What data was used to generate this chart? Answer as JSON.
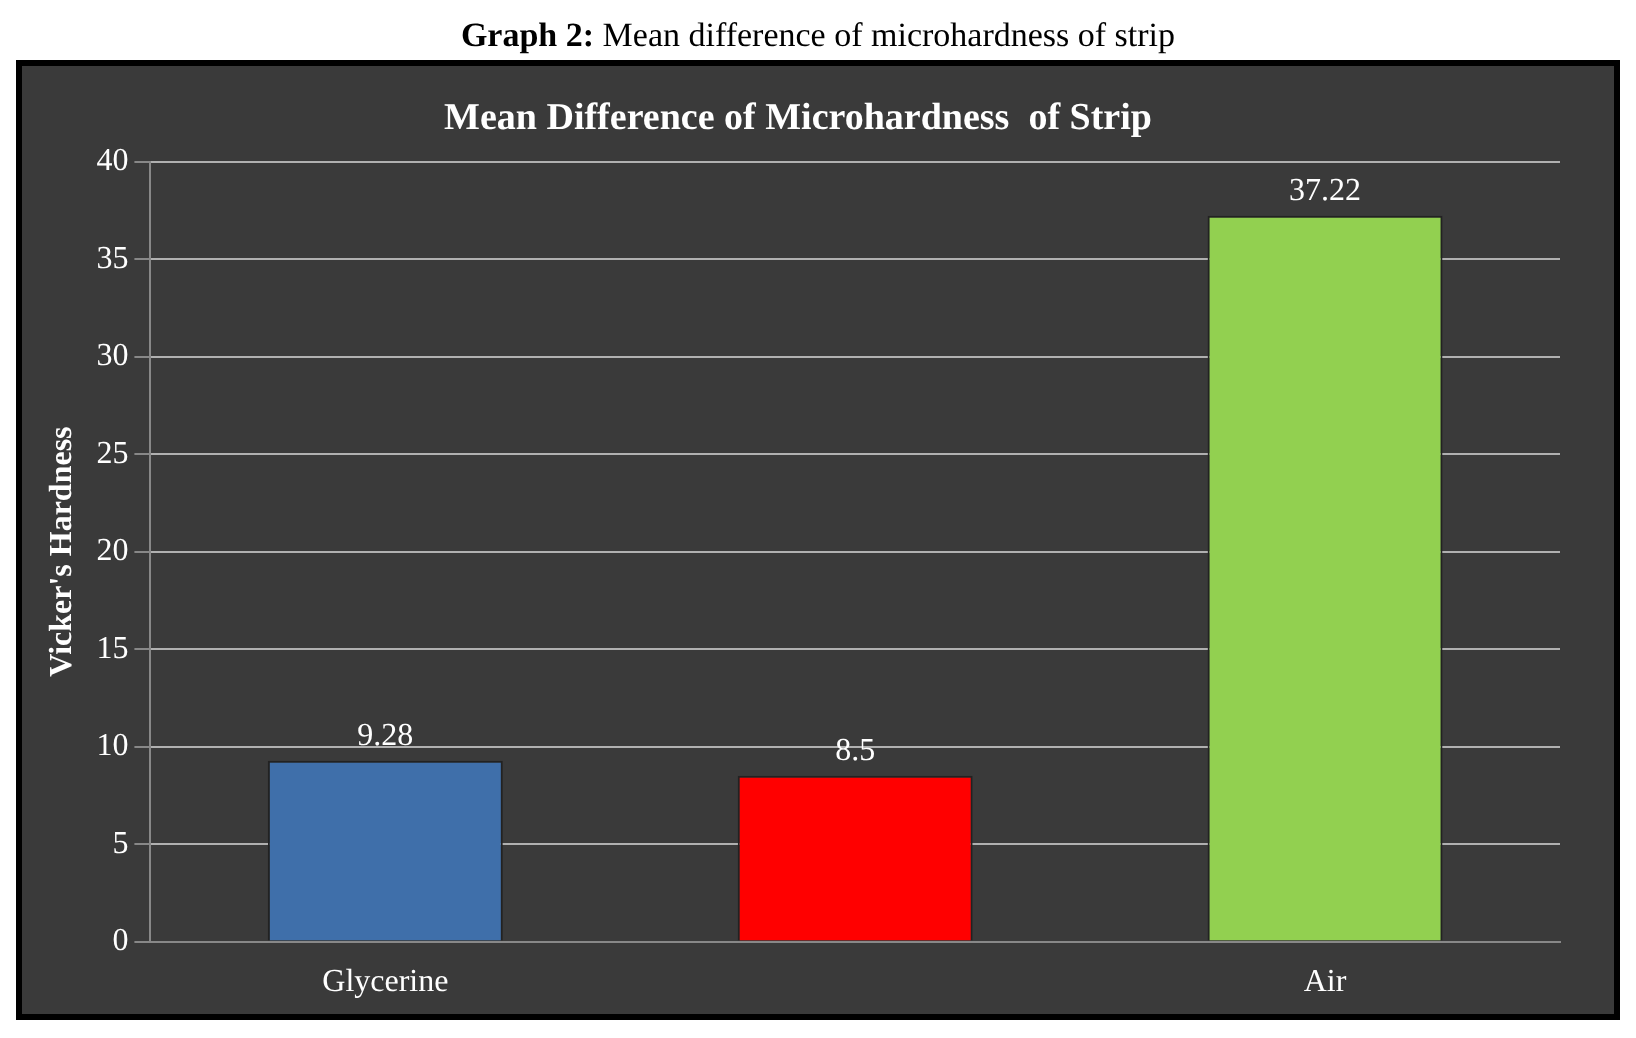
{
  "chart_data": {
    "type": "bar",
    "title": "Mean Difference of Microhardness  of Strip",
    "ylabel": "Vicker's Hardness",
    "annotations": [
      "Graph 2: Mean difference of microhardness of strip"
    ],
    "categories": [
      "Glycerine",
      null,
      "Air"
    ],
    "values": [
      9.28,
      8.5,
      37.22
    ],
    "colors": [
      "#3f6faa",
      "#ff0000",
      "#92d050"
    ],
    "ylim": [
      0,
      40
    ],
    "yticks": [
      0,
      5,
      10,
      15,
      20,
      25,
      30,
      35,
      40
    ],
    "grid": "y",
    "data_labels": true
  }
}
